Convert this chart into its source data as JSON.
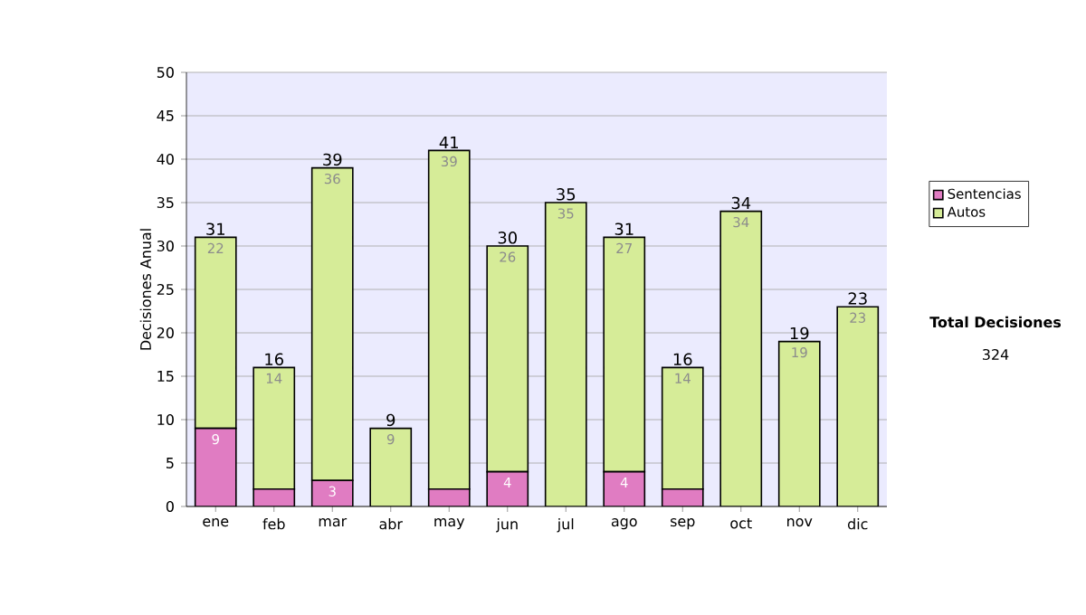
{
  "chart_data": {
    "type": "bar",
    "stacked": true,
    "ylabel": "Decisiones Anual",
    "categories": [
      "ene",
      "feb",
      "mar",
      "abr",
      "may",
      "jun",
      "jul",
      "ago",
      "sep",
      "oct",
      "nov",
      "dic"
    ],
    "series": [
      {
        "name": "Sentencias",
        "color": "#e07cc2",
        "values": [
          9,
          2,
          3,
          0,
          2,
          4,
          0,
          4,
          2,
          0,
          0,
          0
        ],
        "value_labels": [
          "9",
          null,
          "3",
          null,
          null,
          "4",
          null,
          "4",
          null,
          null,
          null,
          null
        ]
      },
      {
        "name": "Autos",
        "color": "#d6ec98",
        "values": [
          22,
          14,
          36,
          9,
          39,
          26,
          35,
          27,
          14,
          34,
          19,
          23
        ],
        "value_labels": [
          "22",
          "14",
          "36",
          "9",
          "39",
          "26",
          "35",
          "27",
          "14",
          "34",
          "19",
          "23"
        ]
      }
    ],
    "totals": [
      "31",
      "16",
      "39",
      "9",
      "41",
      "30",
      "35",
      "31",
      "16",
      "34",
      "19",
      "23"
    ],
    "ylim": [
      0,
      50
    ],
    "yticks": [
      0,
      5,
      10,
      15,
      20,
      25,
      30,
      35,
      40,
      45,
      50
    ],
    "grid": "y",
    "legend": "right",
    "annotations": [
      "Total Decisiones",
      "324"
    ]
  }
}
